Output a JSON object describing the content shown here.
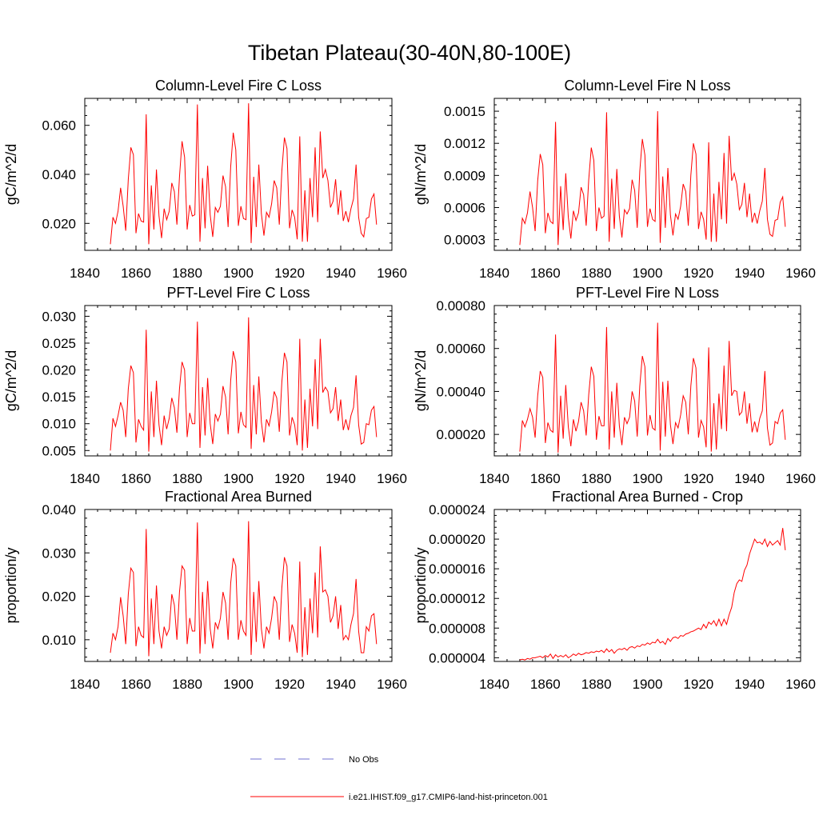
{
  "figure_title": "Tibetan Plateau(30-40N,80-100E)",
  "legend": [
    {
      "label": "No Obs",
      "style": "dashed",
      "color": "#6f6fd0"
    },
    {
      "label": "i.e21.IHIST.f09_g17.CMIP6-land-hist-princeton.001",
      "style": "solid",
      "color": "#ff0000"
    }
  ],
  "chart_data": [
    {
      "type": "line",
      "title": "Column-Level Fire C Loss",
      "ylabel": "gC/m^2/d",
      "xlim": [
        1840,
        1960
      ],
      "ylim": [
        0.009,
        0.071
      ],
      "xticks": [
        "1840",
        "1860",
        "1880",
        "1900",
        "1920",
        "1940",
        "1960"
      ],
      "yticks": [
        "0.020",
        "0.040",
        "0.060"
      ],
      "series": [
        {
          "name": "i.e21.IHIST.f09_g17.CMIP6-land-hist-princeton.001",
          "color": "#ff0000",
          "x0": 1850,
          "values": [
            0.0115,
            0.0225,
            0.02,
            0.025,
            0.0345,
            0.027,
            0.017,
            0.038,
            0.051,
            0.048,
            0.016,
            0.024,
            0.021,
            0.0205,
            0.0645,
            0.0115,
            0.0355,
            0.0175,
            0.042,
            0.023,
            0.014,
            0.026,
            0.0215,
            0.025,
            0.0365,
            0.033,
            0.0195,
            0.039,
            0.0535,
            0.047,
            0.0175,
            0.0275,
            0.023,
            0.0235,
            0.0685,
            0.0125,
            0.0385,
            0.018,
            0.0435,
            0.0235,
            0.0145,
            0.0265,
            0.0245,
            0.027,
            0.0395,
            0.035,
            0.0185,
            0.043,
            0.057,
            0.05,
            0.019,
            0.027,
            0.022,
            0.0215,
            0.069,
            0.012,
            0.039,
            0.0185,
            0.044,
            0.024,
            0.015,
            0.0245,
            0.0225,
            0.028,
            0.0375,
            0.0345,
            0.0195,
            0.0415,
            0.055,
            0.0505,
            0.018,
            0.0255,
            0.0225,
            0.0135,
            0.0555,
            0.0125,
            0.0335,
            0.0125,
            0.0385,
            0.0225,
            0.051,
            0.0205,
            0.0575,
            0.0385,
            0.042,
            0.0375,
            0.0265,
            0.029,
            0.038,
            0.0235,
            0.0335,
            0.021,
            0.025,
            0.0205,
            0.026,
            0.03,
            0.044,
            0.0225,
            0.016,
            0.0145,
            0.022,
            0.0225,
            0.03,
            0.032,
            0.0195
          ]
        }
      ]
    },
    {
      "type": "line",
      "title": "Column-Level Fire N Loss",
      "ylabel": "gN/m^2/d",
      "xlim": [
        1840,
        1960
      ],
      "ylim": [
        0.0002,
        0.00162
      ],
      "xticks": [
        "1840",
        "1860",
        "1880",
        "1900",
        "1920",
        "1940",
        "1960"
      ],
      "yticks": [
        "0.0003",
        "0.0006",
        "0.0009",
        "0.0012",
        "0.0015"
      ],
      "series": [
        {
          "name": "i.e21.IHIST.f09_g17.CMIP6-land-hist-princeton.001",
          "color": "#ff0000",
          "x0": 1850,
          "values": [
            0.00025,
            0.0005,
            0.00045,
            0.00055,
            0.00075,
            0.0006,
            0.00038,
            0.00085,
            0.0011,
            0.001,
            0.00036,
            0.00055,
            0.00047,
            0.00045,
            0.0014,
            0.00025,
            0.0008,
            0.00039,
            0.00092,
            0.00051,
            0.00031,
            0.00057,
            0.00048,
            0.00055,
            0.00079,
            0.00072,
            0.00043,
            0.00086,
            0.00116,
            0.00104,
            0.00038,
            0.0006,
            0.0005,
            0.00052,
            0.00149,
            0.00028,
            0.00087,
            0.0004,
            0.00096,
            0.00052,
            0.00032,
            0.00058,
            0.00054,
            0.00059,
            0.00086,
            0.00076,
            0.00041,
            0.00094,
            0.00124,
            0.00109,
            0.00042,
            0.00059,
            0.00049,
            0.00047,
            0.0015,
            0.00027,
            0.00089,
            0.00041,
            0.00097,
            0.00053,
            0.00034,
            0.00054,
            0.00049,
            0.00061,
            0.00082,
            0.00075,
            0.00043,
            0.0009,
            0.0012,
            0.0011,
            0.0004,
            0.00056,
            0.00049,
            0.0003,
            0.00121,
            0.00028,
            0.00073,
            0.00028,
            0.00084,
            0.00049,
            0.00111,
            0.00045,
            0.00127,
            0.00085,
            0.00092,
            0.00082,
            0.00058,
            0.00063,
            0.00083,
            0.00051,
            0.00073,
            0.00046,
            0.00055,
            0.00045,
            0.00057,
            0.00066,
            0.00097,
            0.00049,
            0.00035,
            0.00033,
            0.00048,
            0.00049,
            0.00065,
            0.0007,
            0.00042
          ]
        }
      ]
    },
    {
      "type": "line",
      "title": "PFT-Level Fire C Loss",
      "ylabel": "gC/m^2/d",
      "xlim": [
        1840,
        1960
      ],
      "ylim": [
        0.004,
        0.032
      ],
      "xticks": [
        "1840",
        "1860",
        "1880",
        "1900",
        "1920",
        "1940",
        "1960"
      ],
      "yticks": [
        "0.005",
        "0.010",
        "0.015",
        "0.020",
        "0.025",
        "0.030"
      ],
      "series": [
        {
          "name": "i.e21.IHIST.f09_g17.CMIP6-land-hist-princeton.001",
          "color": "#ff0000",
          "x0": 1850,
          "values": [
            0.005,
            0.011,
            0.0095,
            0.0115,
            0.014,
            0.0125,
            0.0075,
            0.0165,
            0.0208,
            0.0195,
            0.0065,
            0.0108,
            0.0095,
            0.0088,
            0.0275,
            0.0048,
            0.016,
            0.0075,
            0.018,
            0.0098,
            0.006,
            0.0115,
            0.009,
            0.011,
            0.0148,
            0.013,
            0.0083,
            0.0165,
            0.0215,
            0.02,
            0.0075,
            0.012,
            0.01,
            0.01,
            0.029,
            0.0055,
            0.0168,
            0.0078,
            0.0185,
            0.01,
            0.0062,
            0.0118,
            0.0105,
            0.0118,
            0.017,
            0.015,
            0.008,
            0.018,
            0.0235,
            0.0215,
            0.0082,
            0.0122,
            0.0098,
            0.0093,
            0.0298,
            0.0053,
            0.0172,
            0.008,
            0.0188,
            0.0103,
            0.0065,
            0.0108,
            0.0096,
            0.0122,
            0.016,
            0.0148,
            0.0085,
            0.0178,
            0.0232,
            0.0215,
            0.0078,
            0.0112,
            0.0098,
            0.006,
            0.0258,
            0.005,
            0.0145,
            0.0055,
            0.0165,
            0.0095,
            0.022,
            0.009,
            0.0258,
            0.0158,
            0.0168,
            0.016,
            0.012,
            0.0128,
            0.0168,
            0.0105,
            0.0145,
            0.0088,
            0.0108,
            0.0088,
            0.0115,
            0.013,
            0.019,
            0.0098,
            0.0062,
            0.0065,
            0.01,
            0.0098,
            0.0125,
            0.0132,
            0.0075
          ]
        }
      ]
    },
    {
      "type": "line",
      "title": "PFT-Level Fire N Loss",
      "ylabel": "gN/m^2/d",
      "xlim": [
        1840,
        1960
      ],
      "ylim": [
        0.0001,
        0.0008
      ],
      "xticks": [
        "1840",
        "1860",
        "1880",
        "1900",
        "1920",
        "1940",
        "1960"
      ],
      "yticks": [
        "0.00020",
        "0.00040",
        "0.00060",
        "0.00080"
      ],
      "series": [
        {
          "name": "i.e21.IHIST.f09_g17.CMIP6-land-hist-princeton.001",
          "color": "#ff0000",
          "x0": 1850,
          "values": [
            0.00012,
            0.000265,
            0.000235,
            0.00027,
            0.00032,
            0.00028,
            0.000185,
            0.00038,
            0.000495,
            0.000465,
            0.00016,
            0.000255,
            0.00022,
            0.00021,
            0.000665,
            0.000115,
            0.00038,
            0.00018,
            0.00043,
            0.000235,
            0.000145,
            0.00027,
            0.000215,
            0.00026,
            0.00035,
            0.00031,
            0.000195,
            0.000385,
            0.000515,
            0.00047,
            0.000175,
            0.000285,
            0.00024,
            0.00024,
            0.0007,
            0.00013,
            0.0004,
            0.000185,
            0.00044,
            0.00024,
            0.00015,
            0.00028,
            0.00025,
            0.00028,
            0.0004,
            0.000355,
            0.00019,
            0.000425,
            0.000565,
            0.000515,
            0.000195,
            0.00029,
            0.00023,
            0.00022,
            0.00072,
            0.000125,
            0.000445,
            0.00019,
            0.00045,
            0.000245,
            0.000155,
            0.000255,
            0.00023,
            0.00029,
            0.00038,
            0.00035,
            0.0002,
            0.000425,
            0.000555,
            0.00051,
            0.000185,
            0.000265,
            0.000235,
            0.00014,
            0.000605,
            0.00012,
            0.000345,
            0.00013,
            0.00039,
            0.000225,
            0.00052,
            0.000215,
            0.000635,
            0.00038,
            0.000405,
            0.0004,
            0.00029,
            0.000305,
            0.0004,
            0.00025,
            0.000345,
            0.00021,
            0.00026,
            0.00021,
            0.000275,
            0.00031,
            0.000495,
            0.00023,
            0.00015,
            0.00016,
            0.00026,
            0.00025,
            0.0003,
            0.000315,
            0.000175
          ]
        }
      ]
    },
    {
      "type": "line",
      "title": "Fractional Area Burned",
      "ylabel": "proportion/y",
      "xlim": [
        1840,
        1960
      ],
      "ylim": [
        0.005,
        0.04
      ],
      "xticks": [
        "1840",
        "1860",
        "1880",
        "1900",
        "1920",
        "1940",
        "1960"
      ],
      "yticks": [
        "0.010",
        "0.020",
        "0.030",
        "0.040"
      ],
      "series": [
        {
          "name": "i.e21.IHIST.f09_g17.CMIP6-land-hist-princeton.001",
          "color": "#ff0000",
          "x0": 1850,
          "values": [
            0.007,
            0.0115,
            0.01,
            0.013,
            0.0198,
            0.0155,
            0.009,
            0.0205,
            0.0265,
            0.0255,
            0.0085,
            0.013,
            0.011,
            0.0105,
            0.0355,
            0.0062,
            0.0195,
            0.009,
            0.0225,
            0.012,
            0.008,
            0.013,
            0.011,
            0.0125,
            0.0205,
            0.018,
            0.01,
            0.021,
            0.027,
            0.026,
            0.009,
            0.015,
            0.012,
            0.012,
            0.037,
            0.0068,
            0.021,
            0.009,
            0.0235,
            0.0125,
            0.008,
            0.014,
            0.0125,
            0.015,
            0.021,
            0.0185,
            0.01,
            0.023,
            0.0288,
            0.027,
            0.01,
            0.0145,
            0.012,
            0.011,
            0.0373,
            0.0065,
            0.021,
            0.0095,
            0.0235,
            0.0125,
            0.008,
            0.013,
            0.0115,
            0.015,
            0.02,
            0.0185,
            0.01,
            0.022,
            0.029,
            0.027,
            0.0095,
            0.0135,
            0.0115,
            0.007,
            0.028,
            0.006,
            0.0175,
            0.0065,
            0.0195,
            0.0115,
            0.0255,
            0.0105,
            0.0315,
            0.021,
            0.0215,
            0.02,
            0.014,
            0.0155,
            0.02,
            0.0125,
            0.018,
            0.01,
            0.011,
            0.01,
            0.0135,
            0.016,
            0.024,
            0.012,
            0.007,
            0.007,
            0.013,
            0.012,
            0.0155,
            0.016,
            0.009
          ]
        }
      ]
    },
    {
      "type": "line",
      "title": "Fractional Area Burned - Crop",
      "ylabel": "proportion/y",
      "xlim": [
        1840,
        1960
      ],
      "ylim": [
        3.5e-06,
        2.4e-05
      ],
      "xticks": [
        "1840",
        "1860",
        "1880",
        "1900",
        "1920",
        "1940",
        "1960"
      ],
      "yticks": [
        "0.000004",
        "0.000008",
        "0.000012",
        "0.000016",
        "0.000020",
        "0.000024"
      ],
      "series": [
        {
          "name": "i.e21.IHIST.f09_g17.CMIP6-land-hist-princeton.001",
          "color": "#ff0000",
          "x0": 1850,
          "values": [
            3.7e-06,
            3.8e-06,
            3.7e-06,
            3.9e-06,
            3.8e-06,
            4e-06,
            4e-06,
            4.1e-06,
            4.2e-06,
            4e-06,
            4.3e-06,
            4.1e-06,
            4.5e-06,
            3.9e-06,
            4.4e-06,
            4.1e-06,
            4.3e-06,
            4.1e-06,
            4.4e-06,
            4e-06,
            4.2e-06,
            4.5e-06,
            4.3e-06,
            4.6e-06,
            4.4e-06,
            4.5e-06,
            4.7e-06,
            4.6e-06,
            4.8e-06,
            4.7e-06,
            4.9e-06,
            4.8e-06,
            5e-06,
            4.7e-06,
            5.2e-06,
            4.8e-06,
            5.1e-06,
            4.6e-06,
            5e-06,
            5.2e-06,
            5.1e-06,
            5.3e-06,
            5e-06,
            5.4e-06,
            5.5e-06,
            5.3e-06,
            5.6e-06,
            5.5e-06,
            5.8e-06,
            5.7e-06,
            6e-06,
            5.8e-06,
            6.1e-06,
            6e-06,
            6.5e-06,
            6e-06,
            6.2e-06,
            5.8e-06,
            6.6e-06,
            6.2e-06,
            6.7e-06,
            6.8e-06,
            6.6e-06,
            7e-06,
            6.9e-06,
            7.2e-06,
            7.3e-06,
            7.5e-06,
            7.6e-06,
            7.8e-06,
            8e-06,
            7.8e-06,
            8.5e-06,
            8e-06,
            8.8e-06,
            8.5e-06,
            9e-06,
            8.3e-06,
            9.2e-06,
            8.3e-06,
            9.2e-06,
            8.5e-06,
            9.8e-06,
            1.08e-05,
            1.28e-05,
            1.4e-05,
            1.45e-05,
            1.43e-05,
            1.58e-05,
            1.65e-05,
            1.8e-05,
            1.9e-05,
            2e-05,
            1.95e-05,
            1.96e-05,
            1.93e-05,
            2e-05,
            1.9e-05,
            1.97e-05,
            1.92e-05,
            1.95e-05,
            1.98e-05,
            1.92e-05,
            2.15e-05,
            1.85e-05
          ]
        }
      ]
    }
  ]
}
